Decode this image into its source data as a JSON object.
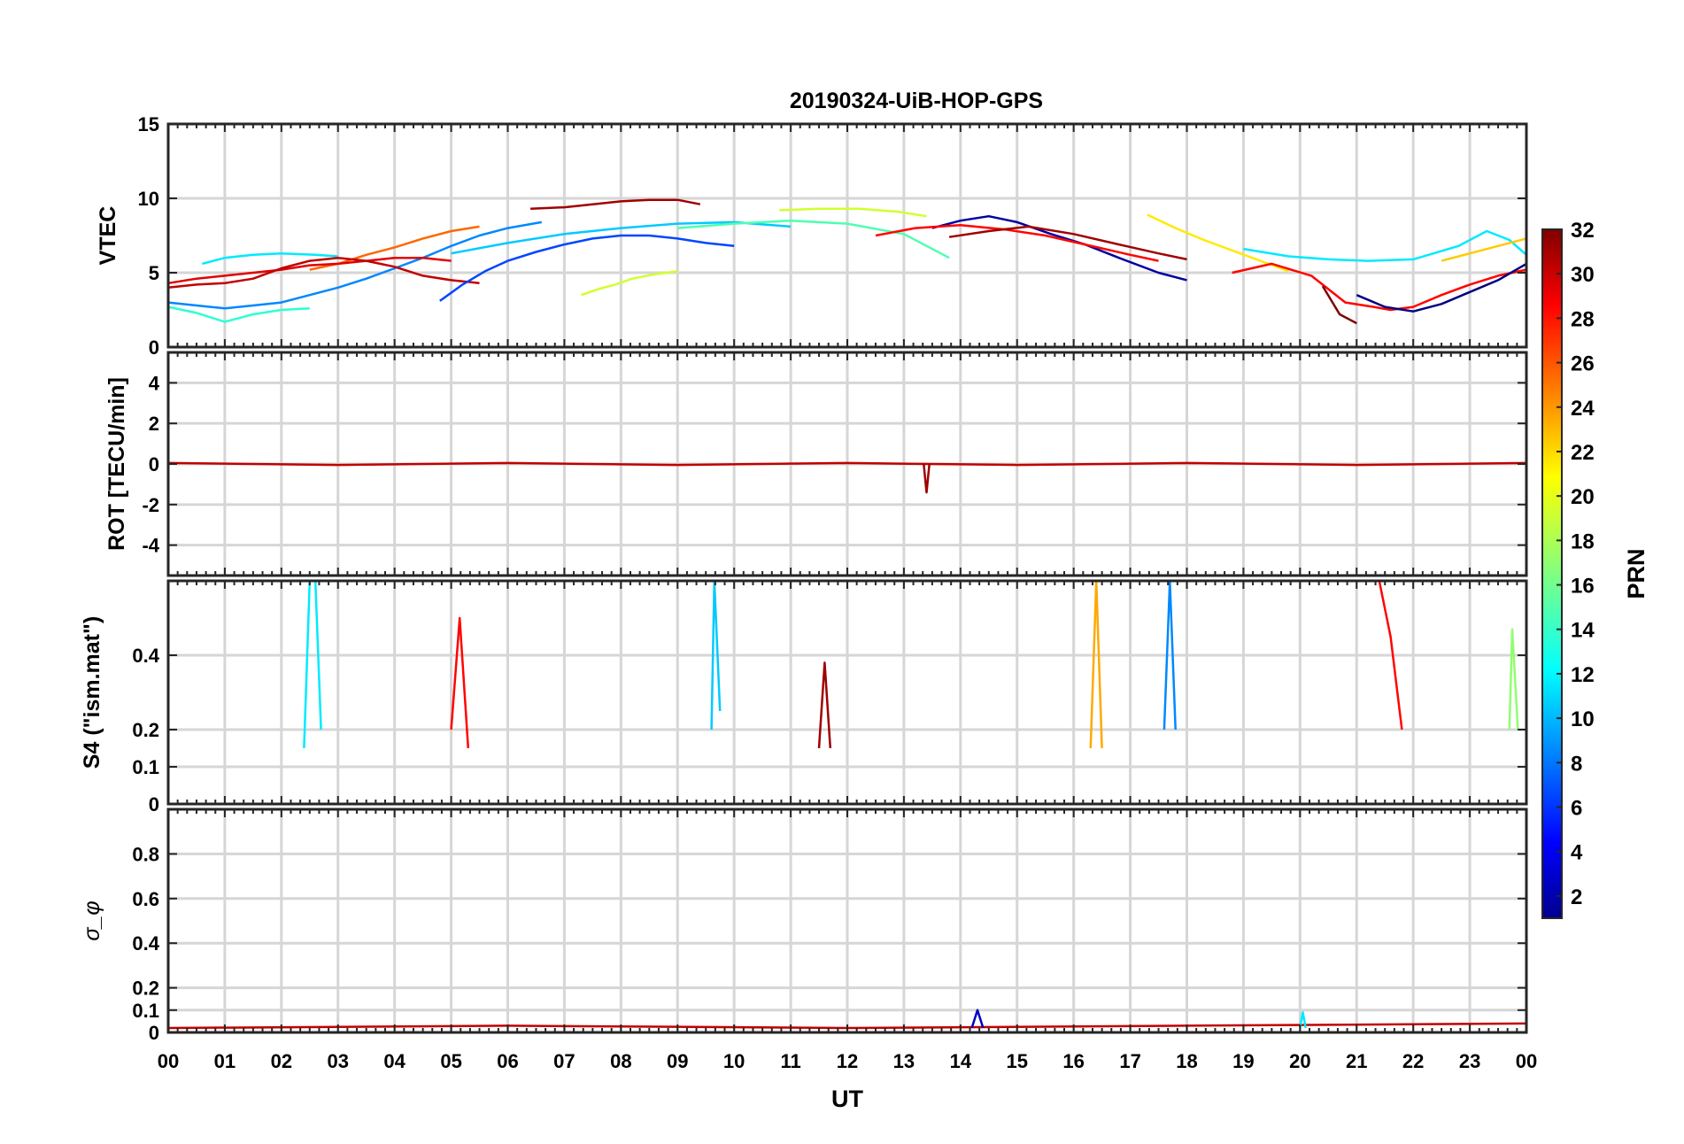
{
  "chart_data": {
    "title": "20190324-UiB-HOP-GPS",
    "xlabel": "UT",
    "xtick_labels": [
      "00",
      "01",
      "02",
      "03",
      "04",
      "05",
      "06",
      "07",
      "08",
      "09",
      "10",
      "11",
      "12",
      "13",
      "14",
      "15",
      "16",
      "17",
      "18",
      "19",
      "20",
      "21",
      "22",
      "23",
      "00"
    ],
    "xlim": [
      0,
      24
    ],
    "grid": true,
    "colorbar": {
      "label": "PRN",
      "range": [
        1,
        32
      ],
      "ticks": [
        2,
        4,
        6,
        8,
        10,
        12,
        14,
        16,
        18,
        20,
        22,
        24,
        26,
        28,
        30,
        32
      ],
      "colormap": "jet"
    },
    "panels": [
      {
        "id": "vtec",
        "type": "line",
        "ylabel": "VTEC",
        "ylim": [
          0,
          15
        ],
        "yticks": [
          0,
          5,
          10,
          15
        ],
        "series": [
          {
            "prn": 31,
            "x": [
              6.4,
              7.0,
              7.5,
              8.0,
              8.5,
              9.0,
              9.4
            ],
            "y": [
              9.3,
              9.4,
              9.6,
              9.8,
              9.9,
              9.9,
              9.6
            ]
          },
          {
            "prn": 12,
            "x": [
              0.6,
              1.0,
              1.5,
              2.0,
              2.6,
              3.0
            ],
            "y": [
              5.6,
              6.0,
              6.2,
              6.3,
              6.2,
              6.1
            ]
          },
          {
            "prn": 25,
            "x": [
              2.5,
              3.0,
              3.5,
              4.0,
              4.5,
              5.0,
              5.5
            ],
            "y": [
              5.2,
              5.6,
              6.2,
              6.7,
              7.3,
              7.8,
              8.1
            ]
          },
          {
            "prn": 9,
            "x": [
              0.0,
              0.5,
              1.0,
              1.5,
              2.0,
              2.5,
              3.0,
              3.5,
              4.0,
              4.5,
              5.0,
              5.5,
              6.0,
              6.6
            ],
            "y": [
              3.0,
              2.8,
              2.6,
              2.8,
              3.0,
              3.5,
              4.0,
              4.6,
              5.3,
              6.0,
              6.8,
              7.5,
              8.0,
              8.4
            ]
          },
          {
            "prn": 29,
            "x": [
              0.0,
              0.5,
              1.0,
              1.5,
              2.0,
              2.5,
              3.0,
              3.5,
              4.0,
              4.5,
              5.0
            ],
            "y": [
              4.3,
              4.6,
              4.8,
              5.0,
              5.2,
              5.5,
              5.6,
              5.8,
              6.0,
              6.0,
              5.8
            ]
          },
          {
            "prn": 30,
            "x": [
              0.0,
              0.5,
              1.0,
              1.5,
              2.0,
              2.5,
              3.0,
              3.5,
              4.0,
              4.5,
              5.0,
              5.5
            ],
            "y": [
              4.0,
              4.2,
              4.3,
              4.6,
              5.3,
              5.8,
              6.0,
              5.8,
              5.4,
              4.8,
              4.5,
              4.3
            ]
          },
          {
            "prn": 7,
            "x": [
              4.8,
              5.2,
              5.6,
              6.0,
              6.5,
              7.0,
              7.5,
              8.0,
              8.5,
              9.0,
              9.5,
              10.0
            ],
            "y": [
              3.1,
              4.2,
              5.1,
              5.8,
              6.4,
              6.9,
              7.3,
              7.5,
              7.5,
              7.3,
              7.0,
              6.8
            ]
          },
          {
            "prn": 19,
            "x": [
              7.3,
              7.6,
              7.9,
              8.2,
              8.6,
              9.0
            ],
            "y": [
              3.5,
              3.9,
              4.2,
              4.6,
              4.9,
              5.1
            ]
          },
          {
            "prn": 11,
            "x": [
              5.0,
              6.0,
              7.0,
              8.0,
              9.0,
              10.0,
              11.0
            ],
            "y": [
              6.3,
              7.0,
              7.6,
              8.0,
              8.3,
              8.4,
              8.1
            ]
          },
          {
            "prn": 15,
            "x": [
              9.0,
              10.0,
              11.0,
              12.0,
              13.0,
              13.8
            ],
            "y": [
              8.0,
              8.3,
              8.5,
              8.3,
              7.6,
              6.0
            ]
          },
          {
            "prn": 19,
            "x": [
              10.8,
              11.5,
              12.2,
              12.9,
              13.4
            ],
            "y": [
              9.2,
              9.3,
              9.3,
              9.1,
              8.8
            ]
          },
          {
            "prn": 2,
            "x": [
              13.5,
              14.0,
              14.5,
              15.0,
              15.6,
              16.2,
              16.8,
              17.5,
              18.0
            ],
            "y": [
              8.0,
              8.5,
              8.8,
              8.4,
              7.6,
              6.9,
              6.0,
              5.0,
              4.5
            ]
          },
          {
            "prn": 28,
            "x": [
              12.5,
              13.2,
              14.0,
              14.8,
              15.5,
              16.2,
              17.0,
              17.5
            ],
            "y": [
              7.5,
              8.0,
              8.2,
              7.9,
              7.5,
              6.9,
              6.2,
              5.8
            ]
          },
          {
            "prn": 31,
            "x": [
              13.8,
              14.5,
              15.2,
              16.0,
              16.8,
              17.5,
              18.0
            ],
            "y": [
              7.4,
              7.8,
              8.1,
              7.6,
              6.9,
              6.3,
              5.9
            ]
          },
          {
            "prn": 21,
            "x": [
              17.3,
              17.8,
              18.3,
              18.8,
              19.3,
              19.8
            ],
            "y": [
              8.9,
              8.0,
              7.2,
              6.5,
              5.8,
              5.1
            ]
          },
          {
            "prn": 12,
            "x": [
              19.0,
              19.8,
              20.5,
              21.2,
              22.0,
              22.8,
              23.3,
              23.7,
              24.0
            ],
            "y": [
              6.6,
              6.1,
              5.9,
              5.8,
              5.9,
              6.8,
              7.8,
              7.2,
              6.2
            ]
          },
          {
            "prn": 28,
            "x": [
              18.8,
              19.5,
              20.2,
              20.8,
              21.3,
              21.6,
              22.0,
              22.5,
              23.0,
              23.5,
              24.0
            ],
            "y": [
              5.0,
              5.6,
              4.8,
              3.0,
              2.7,
              2.5,
              2.7,
              3.5,
              4.2,
              4.8,
              5.2
            ]
          },
          {
            "prn": 32,
            "x": [
              20.4,
              20.7,
              21.0
            ],
            "y": [
              4.1,
              2.2,
              1.6
            ]
          },
          {
            "prn": 1,
            "x": [
              21.0,
              21.5,
              22.0,
              22.5,
              23.0,
              23.5,
              24.0
            ],
            "y": [
              3.5,
              2.7,
              2.4,
              2.9,
              3.7,
              4.5,
              5.6
            ]
          },
          {
            "prn": 14,
            "x": [
              0.0,
              0.5,
              1.0,
              1.5,
              2.0,
              2.5
            ],
            "y": [
              2.7,
              2.3,
              1.7,
              2.2,
              2.5,
              2.6
            ]
          },
          {
            "prn": 22,
            "x": [
              22.5,
              23.0,
              23.5,
              24.0
            ],
            "y": [
              5.8,
              6.3,
              6.8,
              7.3
            ]
          }
        ]
      },
      {
        "id": "rot",
        "type": "line",
        "ylabel": "ROT [TECU/min]",
        "ylim": [
          -5.5,
          5.5
        ],
        "yticks": [
          -4,
          -2,
          0,
          2,
          4
        ],
        "series": [
          {
            "prn": 30,
            "x": [
              0,
              3,
              6,
              9,
              12,
              15,
              18,
              21,
              24
            ],
            "y": [
              0.05,
              -0.05,
              0.05,
              -0.05,
              0.05,
              -0.05,
              0.05,
              -0.05,
              0.05
            ]
          },
          {
            "prn": 31,
            "x": [
              13.35,
              13.4,
              13.45
            ],
            "y": [
              0.0,
              -1.4,
              0.0
            ]
          }
        ]
      },
      {
        "id": "s4",
        "type": "line",
        "ylabel": "S4 (\"ism.mat\")",
        "ylim": [
          0,
          0.6
        ],
        "yticks": [
          0,
          0.1,
          0.2,
          0.4
        ],
        "series": [
          {
            "prn": 12,
            "x": [
              2.4,
              2.5,
              2.6,
              2.7
            ],
            "y": [
              0.15,
              0.6,
              0.6,
              0.2
            ]
          },
          {
            "prn": 28,
            "x": [
              5.0,
              5.15,
              5.3
            ],
            "y": [
              0.2,
              0.5,
              0.15
            ]
          },
          {
            "prn": 11,
            "x": [
              9.6,
              9.65,
              9.75
            ],
            "y": [
              0.2,
              0.6,
              0.25
            ]
          },
          {
            "prn": 9,
            "x": [
              17.6,
              17.7,
              17.8
            ],
            "y": [
              0.2,
              0.6,
              0.2
            ]
          },
          {
            "prn": 23,
            "x": [
              16.3,
              16.4,
              16.5
            ],
            "y": [
              0.15,
              0.6,
              0.15
            ]
          },
          {
            "prn": 28,
            "x": [
              21.3,
              21.4,
              21.6,
              21.8
            ],
            "y": [
              0.6,
              0.6,
              0.45,
              0.2
            ]
          },
          {
            "prn": 31,
            "x": [
              11.5,
              11.6,
              11.7
            ],
            "y": [
              0.15,
              0.38,
              0.15
            ]
          },
          {
            "prn": 17,
            "x": [
              23.7,
              23.75,
              23.85
            ],
            "y": [
              0.2,
              0.47,
              0.2
            ]
          }
        ]
      },
      {
        "id": "sigma_phi",
        "type": "line",
        "ylabel": "σ_φ",
        "ylim": [
          0,
          1
        ],
        "yticks": [
          0,
          0.1,
          0.2,
          0.4,
          0.6,
          0.8
        ],
        "series": [
          {
            "prn": 30,
            "x": [
              0,
              6,
              12,
              18,
              24
            ],
            "y": [
              0.02,
              0.03,
              0.02,
              0.03,
              0.04
            ]
          },
          {
            "prn": 3,
            "x": [
              14.2,
              14.3,
              14.4
            ],
            "y": [
              0.02,
              0.1,
              0.02
            ]
          },
          {
            "prn": 12,
            "x": [
              20.0,
              20.05,
              20.1
            ],
            "y": [
              0.02,
              0.09,
              0.02
            ]
          }
        ]
      }
    ]
  }
}
